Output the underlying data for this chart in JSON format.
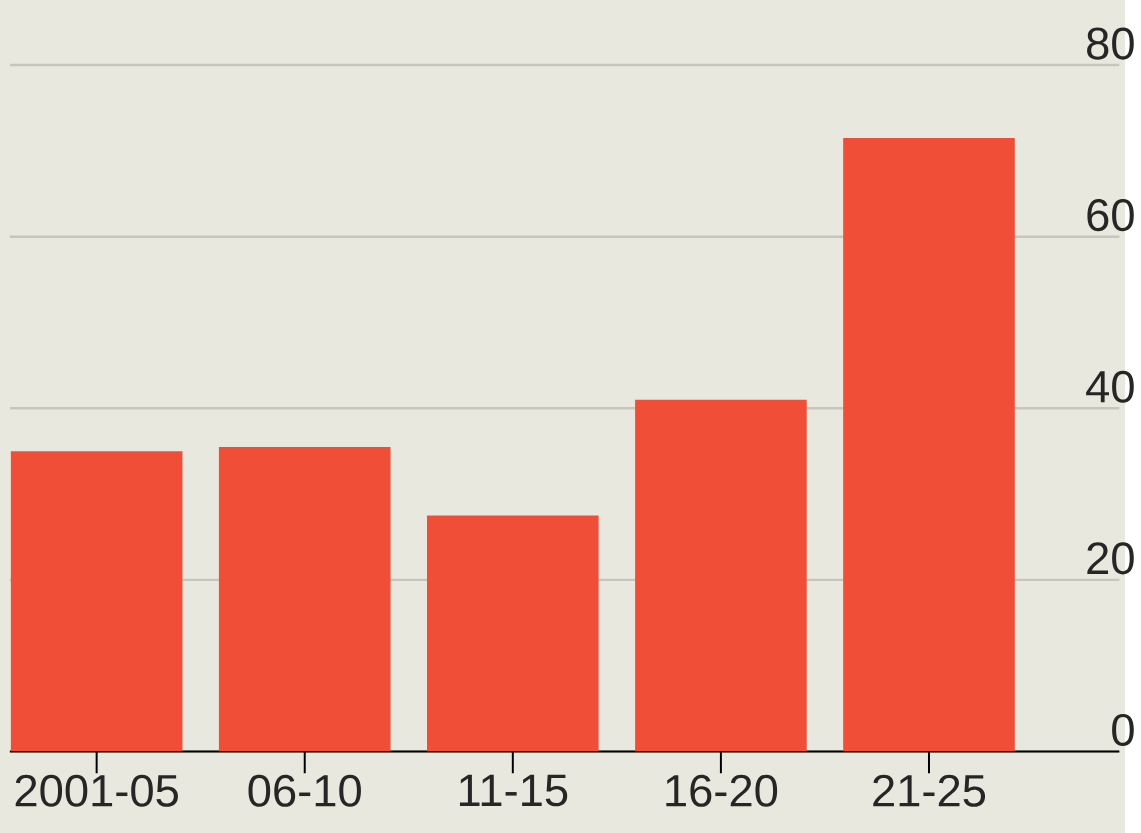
{
  "chart_data": {
    "type": "bar",
    "categories": [
      "2001-05",
      "06-10",
      "11-15",
      "16-20",
      "21-25"
    ],
    "values": [
      35,
      35.5,
      27.5,
      41,
      71.5
    ],
    "color": "#f04e37",
    "ylim": [
      0,
      80
    ],
    "yticks": [
      0,
      20,
      40,
      60,
      80
    ],
    "grid": "y"
  }
}
